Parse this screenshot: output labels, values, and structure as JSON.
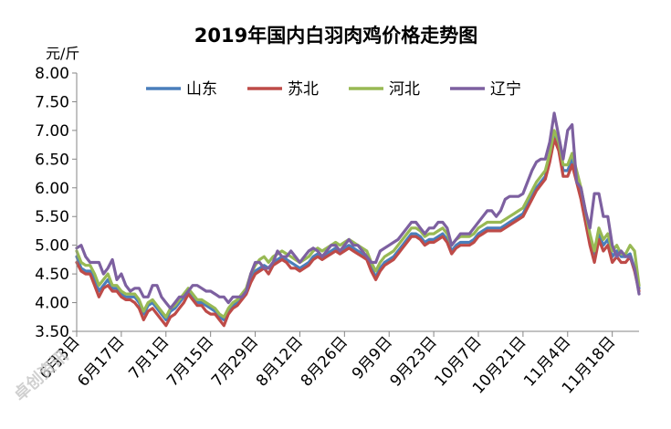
{
  "chart_data": {
    "type": "line",
    "title": "2019年国内白羽肉鸡价格走势图",
    "ylabel": "元/斤",
    "ylim": [
      3.5,
      8.0
    ],
    "yticks": [
      "8.00",
      "7.50",
      "7.00",
      "6.50",
      "6.00",
      "5.50",
      "5.00",
      "4.50",
      "4.00",
      "3.50"
    ],
    "x_labels": [
      "6月3日",
      "6月17日",
      "7月1日",
      "7月15日",
      "7月29日",
      "8月12日",
      "8月26日",
      "9月9日",
      "9月23日",
      "10月7日",
      "10月21日",
      "11月4日",
      "11月18日"
    ],
    "x_label_index": [
      0,
      10,
      20,
      30,
      40,
      50,
      60,
      70,
      80,
      90,
      100,
      110,
      120
    ],
    "legend_position": "top",
    "grid": false,
    "series": [
      {
        "name": "山东",
        "color": "#4a7ebb",
        "values": [
          4.8,
          4.6,
          4.55,
          4.55,
          4.4,
          4.2,
          4.3,
          4.4,
          4.25,
          4.25,
          4.15,
          4.1,
          4.1,
          4.1,
          4.0,
          3.8,
          3.95,
          4.0,
          3.9,
          3.8,
          3.7,
          3.85,
          3.9,
          4.0,
          4.1,
          4.2,
          4.1,
          4.0,
          4.0,
          3.95,
          3.9,
          3.85,
          3.75,
          3.7,
          3.85,
          3.95,
          4.0,
          4.1,
          4.2,
          4.4,
          4.55,
          4.6,
          4.65,
          4.6,
          4.7,
          4.75,
          4.8,
          4.75,
          4.7,
          4.65,
          4.6,
          4.65,
          4.7,
          4.8,
          4.85,
          4.8,
          4.85,
          4.9,
          4.95,
          4.9,
          4.95,
          5.0,
          4.95,
          4.9,
          4.85,
          4.8,
          4.6,
          4.45,
          4.6,
          4.7,
          4.75,
          4.8,
          4.9,
          5.0,
          5.1,
          5.2,
          5.2,
          5.15,
          5.05,
          5.1,
          5.1,
          5.15,
          5.2,
          5.1,
          4.9,
          5.0,
          5.05,
          5.05,
          5.05,
          5.1,
          5.2,
          5.25,
          5.3,
          5.3,
          5.3,
          5.3,
          5.35,
          5.4,
          5.45,
          5.5,
          5.55,
          5.7,
          5.85,
          6.0,
          6.1,
          6.2,
          6.5,
          6.9,
          6.7,
          6.3,
          6.3,
          6.5,
          6.2,
          5.9,
          5.5,
          5.1,
          4.85,
          5.2,
          5.0,
          5.1,
          4.8,
          4.9,
          4.8,
          4.8,
          4.85,
          4.6,
          4.25
        ]
      },
      {
        "name": "苏北",
        "color": "#be4b48",
        "values": [
          4.7,
          4.55,
          4.5,
          4.5,
          4.3,
          4.1,
          4.25,
          4.3,
          4.2,
          4.2,
          4.1,
          4.05,
          4.05,
          4.0,
          3.9,
          3.7,
          3.85,
          3.9,
          3.8,
          3.7,
          3.6,
          3.75,
          3.8,
          3.9,
          4.0,
          4.15,
          4.05,
          3.95,
          3.95,
          3.85,
          3.8,
          3.8,
          3.7,
          3.6,
          3.8,
          3.9,
          3.95,
          4.05,
          4.15,
          4.35,
          4.5,
          4.55,
          4.6,
          4.5,
          4.65,
          4.7,
          4.75,
          4.7,
          4.6,
          4.6,
          4.55,
          4.6,
          4.65,
          4.75,
          4.8,
          4.75,
          4.8,
          4.85,
          4.9,
          4.85,
          4.9,
          4.95,
          4.9,
          4.85,
          4.8,
          4.75,
          4.55,
          4.4,
          4.55,
          4.65,
          4.7,
          4.75,
          4.85,
          4.95,
          5.05,
          5.15,
          5.15,
          5.1,
          5.0,
          5.05,
          5.05,
          5.1,
          5.15,
          5.05,
          4.85,
          4.95,
          5.0,
          5.0,
          5.0,
          5.05,
          5.15,
          5.2,
          5.25,
          5.25,
          5.25,
          5.25,
          5.3,
          5.35,
          5.4,
          5.45,
          5.5,
          5.65,
          5.8,
          5.95,
          6.05,
          6.15,
          6.45,
          6.85,
          6.65,
          6.2,
          6.2,
          6.4,
          6.1,
          5.8,
          5.4,
          5.0,
          4.7,
          5.1,
          4.9,
          5.0,
          4.7,
          4.8,
          4.7,
          4.7,
          4.8,
          4.55,
          4.2
        ]
      },
      {
        "name": "河北",
        "color": "#98b954",
        "values": [
          4.9,
          4.7,
          4.65,
          4.65,
          4.5,
          4.3,
          4.4,
          4.5,
          4.3,
          4.3,
          4.2,
          4.15,
          4.15,
          4.15,
          4.05,
          3.85,
          4.0,
          4.05,
          3.95,
          3.85,
          3.75,
          3.9,
          3.95,
          4.05,
          4.15,
          4.25,
          4.15,
          4.05,
          4.05,
          4.0,
          3.95,
          3.9,
          3.8,
          3.75,
          3.9,
          4.0,
          4.05,
          4.15,
          4.25,
          4.5,
          4.65,
          4.75,
          4.8,
          4.7,
          4.8,
          4.85,
          4.9,
          4.85,
          4.8,
          4.75,
          4.7,
          4.75,
          4.8,
          4.9,
          4.95,
          4.9,
          4.95,
          5.0,
          5.05,
          5.0,
          5.05,
          5.1,
          5.05,
          5.0,
          4.95,
          4.9,
          4.7,
          4.55,
          4.7,
          4.8,
          4.85,
          4.9,
          5.0,
          5.1,
          5.2,
          5.3,
          5.3,
          5.25,
          5.15,
          5.2,
          5.2,
          5.25,
          5.3,
          5.2,
          5.0,
          5.1,
          5.15,
          5.15,
          5.15,
          5.2,
          5.3,
          5.35,
          5.4,
          5.4,
          5.4,
          5.4,
          5.45,
          5.5,
          5.55,
          5.6,
          5.65,
          5.8,
          5.95,
          6.1,
          6.2,
          6.3,
          6.6,
          7.0,
          6.8,
          6.4,
          6.4,
          6.6,
          6.3,
          6.0,
          5.6,
          5.2,
          4.9,
          5.3,
          5.1,
          5.2,
          4.9,
          5.0,
          4.85,
          4.85,
          5.0,
          4.9,
          4.3
        ]
      },
      {
        "name": "辽宁",
        "color": "#7d60a0",
        "values": [
          4.95,
          5.0,
          4.8,
          4.7,
          4.7,
          4.7,
          4.5,
          4.6,
          4.75,
          4.4,
          4.5,
          4.3,
          4.2,
          4.25,
          4.25,
          4.1,
          4.1,
          4.3,
          4.3,
          4.1,
          4.0,
          3.9,
          4.0,
          4.1,
          4.1,
          4.2,
          4.3,
          4.3,
          4.25,
          4.2,
          4.2,
          4.15,
          4.1,
          4.1,
          4.0,
          4.1,
          4.1,
          4.1,
          4.2,
          4.5,
          4.7,
          4.7,
          4.6,
          4.6,
          4.7,
          4.9,
          4.8,
          4.8,
          4.9,
          4.8,
          4.7,
          4.8,
          4.9,
          4.95,
          4.9,
          4.8,
          4.9,
          5.0,
          5.0,
          4.9,
          5.0,
          5.1,
          5.0,
          5.0,
          4.9,
          4.8,
          4.7,
          4.7,
          4.9,
          4.95,
          5.0,
          5.05,
          5.1,
          5.2,
          5.3,
          5.4,
          5.4,
          5.3,
          5.2,
          5.3,
          5.3,
          5.4,
          5.4,
          5.3,
          5.0,
          5.1,
          5.2,
          5.2,
          5.2,
          5.3,
          5.4,
          5.5,
          5.6,
          5.6,
          5.5,
          5.6,
          5.8,
          5.85,
          5.85,
          5.85,
          5.9,
          6.1,
          6.3,
          6.45,
          6.5,
          6.5,
          6.8,
          7.3,
          6.9,
          6.5,
          7.0,
          7.1,
          6.1,
          6.0,
          5.6,
          5.3,
          5.9,
          5.9,
          5.5,
          5.5,
          5.0,
          4.8,
          4.9,
          4.8,
          4.8,
          4.6,
          4.15
        ]
      }
    ]
  },
  "watermark": "卓创资讯"
}
